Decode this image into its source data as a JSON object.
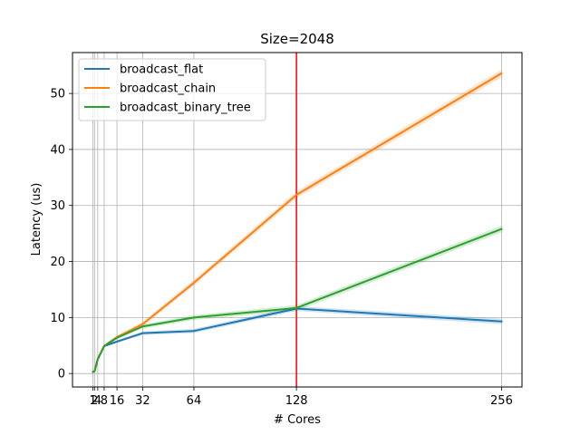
{
  "chart_data": {
    "type": "line",
    "title": "Size=2048",
    "xlabel": "# Cores",
    "ylabel": "Latency (us)",
    "x": [
      1,
      2,
      4,
      8,
      16,
      32,
      64,
      128,
      256
    ],
    "xticks": [
      1,
      2,
      4,
      8,
      16,
      32,
      64,
      128,
      256
    ],
    "xticklabels": [
      "1",
      "2",
      "4",
      "8",
      "16",
      "32",
      "64",
      "128",
      "256"
    ],
    "yticks": [
      0,
      10,
      20,
      30,
      40,
      50
    ],
    "xlim": [
      -11.75,
      268.75
    ],
    "ylim": [
      -2.4,
      57.3
    ],
    "grid": true,
    "legend_position": "upper-left",
    "vline": {
      "x": 128,
      "color": "#ff0000"
    },
    "series": [
      {
        "name": "broadcast_flat",
        "color": "#1f77b4",
        "values": [
          0.3,
          0.4,
          2.5,
          4.9,
          5.7,
          7.2,
          7.6,
          11.6,
          9.3
        ],
        "band": 0.5
      },
      {
        "name": "broadcast_chain",
        "color": "#ff7f0e",
        "values": [
          0.3,
          0.4,
          2.6,
          4.9,
          6.5,
          8.8,
          16.2,
          31.9,
          53.6
        ],
        "band": 0.7
      },
      {
        "name": "broadcast_binary_tree",
        "color": "#2ca02c",
        "values": [
          0.3,
          0.4,
          2.6,
          4.9,
          6.4,
          8.4,
          10.0,
          11.7,
          25.8
        ],
        "band": 0.6
      }
    ]
  }
}
